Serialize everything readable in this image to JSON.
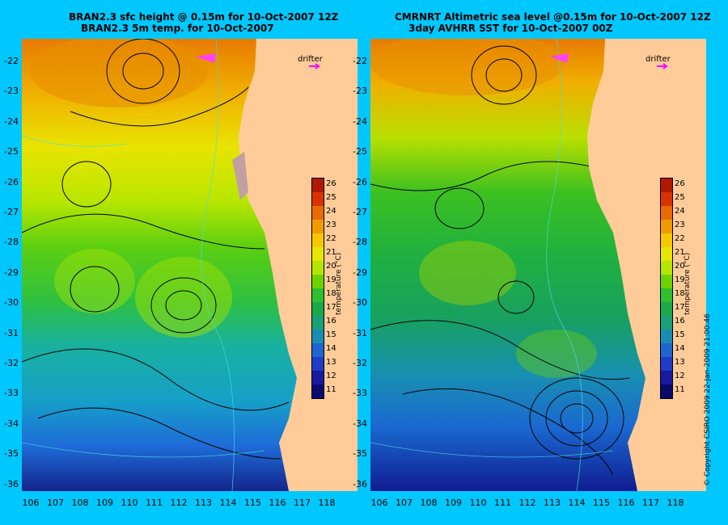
{
  "left_panel": {
    "title_line1": "BRAN2.3 sfc height @ 0.15m for 10-Oct-2007 12Z",
    "title_line2": "BRAN2.3 5m temp. for 10-Oct-2007"
  },
  "right_panel": {
    "title_line1": "CMRNRT Altimetric sea level  @0.15m  for 10-Oct-2007 12Z",
    "title_line2": "3day AVHRR SST for 10-Oct-2007 00Z"
  },
  "drifter_label": "drifter",
  "colorbar": {
    "title": "temperature (°C)",
    "ticks": [
      "26",
      "25",
      "24",
      "23",
      "22",
      "21",
      "20",
      "19",
      "18",
      "17",
      "16",
      "15",
      "14",
      "13",
      "12",
      "11"
    ],
    "colors": [
      "#b01800",
      "#d83200",
      "#e86a00",
      "#f09a00",
      "#f5c800",
      "#e6e600",
      "#b4e600",
      "#6ed200",
      "#2ebe2e",
      "#1aa84a",
      "#18a078",
      "#1a8cb4",
      "#1e64d2",
      "#1e3cc8",
      "#1a1aa0",
      "#0a0a6e"
    ]
  },
  "latitude_ticks": [
    "-22",
    "-23",
    "-24",
    "-25",
    "-26",
    "-27",
    "-28",
    "-29",
    "-30",
    "-31",
    "-32",
    "-33",
    "-34",
    "-35",
    "-36"
  ],
  "longitude_ticks": [
    "106",
    "107",
    "108",
    "109",
    "110",
    "111",
    "112",
    "113",
    "114",
    "115",
    "116",
    "117",
    "118"
  ],
  "copyright": "© Copyright CSIRO 2009    22-Jan-2009 21:00:46",
  "colors": {
    "background": "#00c8ff",
    "land": "#ffcc99"
  }
}
